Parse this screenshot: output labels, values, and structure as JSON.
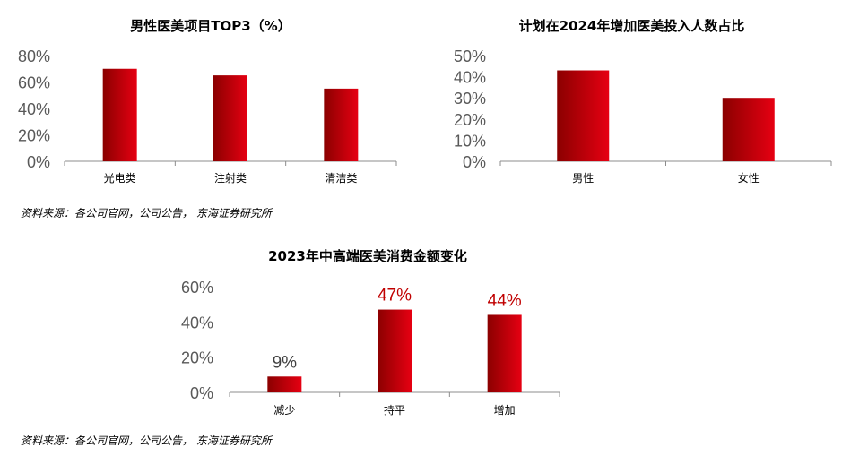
{
  "colors": {
    "bar_dark": "#8b0000",
    "bar_light": "#e60012",
    "axis": "#8c8c8c",
    "data_label_dark": "#404040",
    "data_label_red": "#c00000"
  },
  "chart_data": [
    {
      "type": "bar",
      "title": "男性医美项目TOP3（%）",
      "categories": [
        "光电类",
        "注射类",
        "清洁类"
      ],
      "values": [
        70,
        65,
        55
      ],
      "yticks": [
        "0%",
        "20%",
        "40%",
        "60%",
        "80%"
      ],
      "ylim": [
        0,
        80
      ],
      "grid": false,
      "legend": "none"
    },
    {
      "type": "bar",
      "title": "计划在2024年增加医美投入人数占比",
      "categories": [
        "男性",
        "女性"
      ],
      "values": [
        43,
        30
      ],
      "yticks": [
        "0%",
        "10%",
        "20%",
        "30%",
        "40%",
        "50%"
      ],
      "ylim": [
        0,
        50
      ],
      "grid": false,
      "legend": "none"
    },
    {
      "type": "bar",
      "title": "2023年中高端医美消费金额变化",
      "categories": [
        "减少",
        "持平",
        "增加"
      ],
      "values": [
        9,
        47,
        44
      ],
      "data_labels": [
        "9%",
        "47%",
        "44%"
      ],
      "yticks": [
        "0%",
        "20%",
        "40%",
        "60%"
      ],
      "ylim": [
        0,
        60
      ],
      "grid": false,
      "legend": "none"
    }
  ],
  "sources": [
    "资料来源：各公司官网，公司公告， 东海证券研究所",
    "资料来源：各公司官网，公司公告， 东海证券研究所"
  ]
}
